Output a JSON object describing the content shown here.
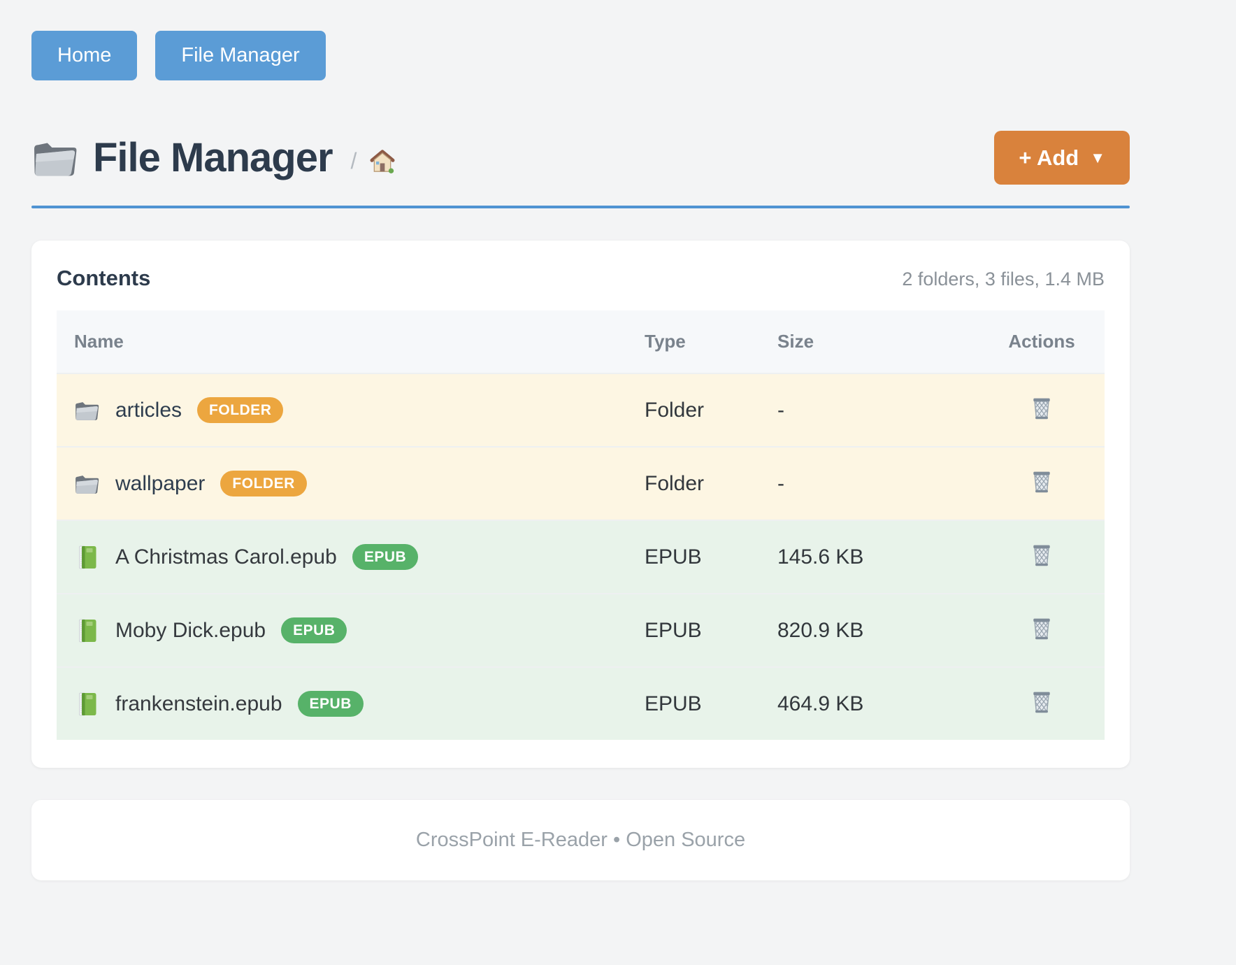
{
  "nav": {
    "buttons": [
      {
        "label": "Home"
      },
      {
        "label": "File Manager"
      }
    ]
  },
  "header": {
    "title": "File Manager",
    "title_icon": "folder-icon",
    "breadcrumb_separator": "/",
    "breadcrumb_home_icon": "house-icon",
    "add_label": "+ Add",
    "add_caret": "▼"
  },
  "card": {
    "heading": "Contents",
    "summary": "2 folders, 3 files, 1.4 MB",
    "table": {
      "columns": [
        "Name",
        "Type",
        "Size",
        "Actions"
      ],
      "rows": [
        {
          "kind": "folder",
          "icon": "folder-icon",
          "name": "articles",
          "badge": "FOLDER",
          "type": "Folder",
          "size": "-",
          "action_icon": "trash-icon"
        },
        {
          "kind": "folder",
          "icon": "folder-icon",
          "name": "wallpaper",
          "badge": "FOLDER",
          "type": "Folder",
          "size": "-",
          "action_icon": "trash-icon"
        },
        {
          "kind": "file",
          "icon": "book-icon",
          "name": "A Christmas Carol.epub",
          "badge": "EPUB",
          "type": "EPUB",
          "size": "145.6 KB",
          "action_icon": "trash-icon"
        },
        {
          "kind": "file",
          "icon": "book-icon",
          "name": "Moby Dick.epub",
          "badge": "EPUB",
          "type": "EPUB",
          "size": "820.9 KB",
          "action_icon": "trash-icon"
        },
        {
          "kind": "file",
          "icon": "book-icon",
          "name": "frankenstein.epub",
          "badge": "EPUB",
          "type": "EPUB",
          "size": "464.9 KB",
          "action_icon": "trash-icon"
        }
      ]
    }
  },
  "footer": {
    "text": "CrossPoint E-Reader • Open Source"
  },
  "colors": {
    "page_bg": "#f3f4f5",
    "nav_button": "#5b9cd6",
    "divider_rule": "#4f93d2",
    "add_button": "#d9823c",
    "folder_badge": "#eca63f",
    "epub_badge": "#57b269",
    "folder_row_bg": "#fdf6e3",
    "file_row_bg": "#e8f3ea",
    "heading_text": "#2d3b4c"
  }
}
